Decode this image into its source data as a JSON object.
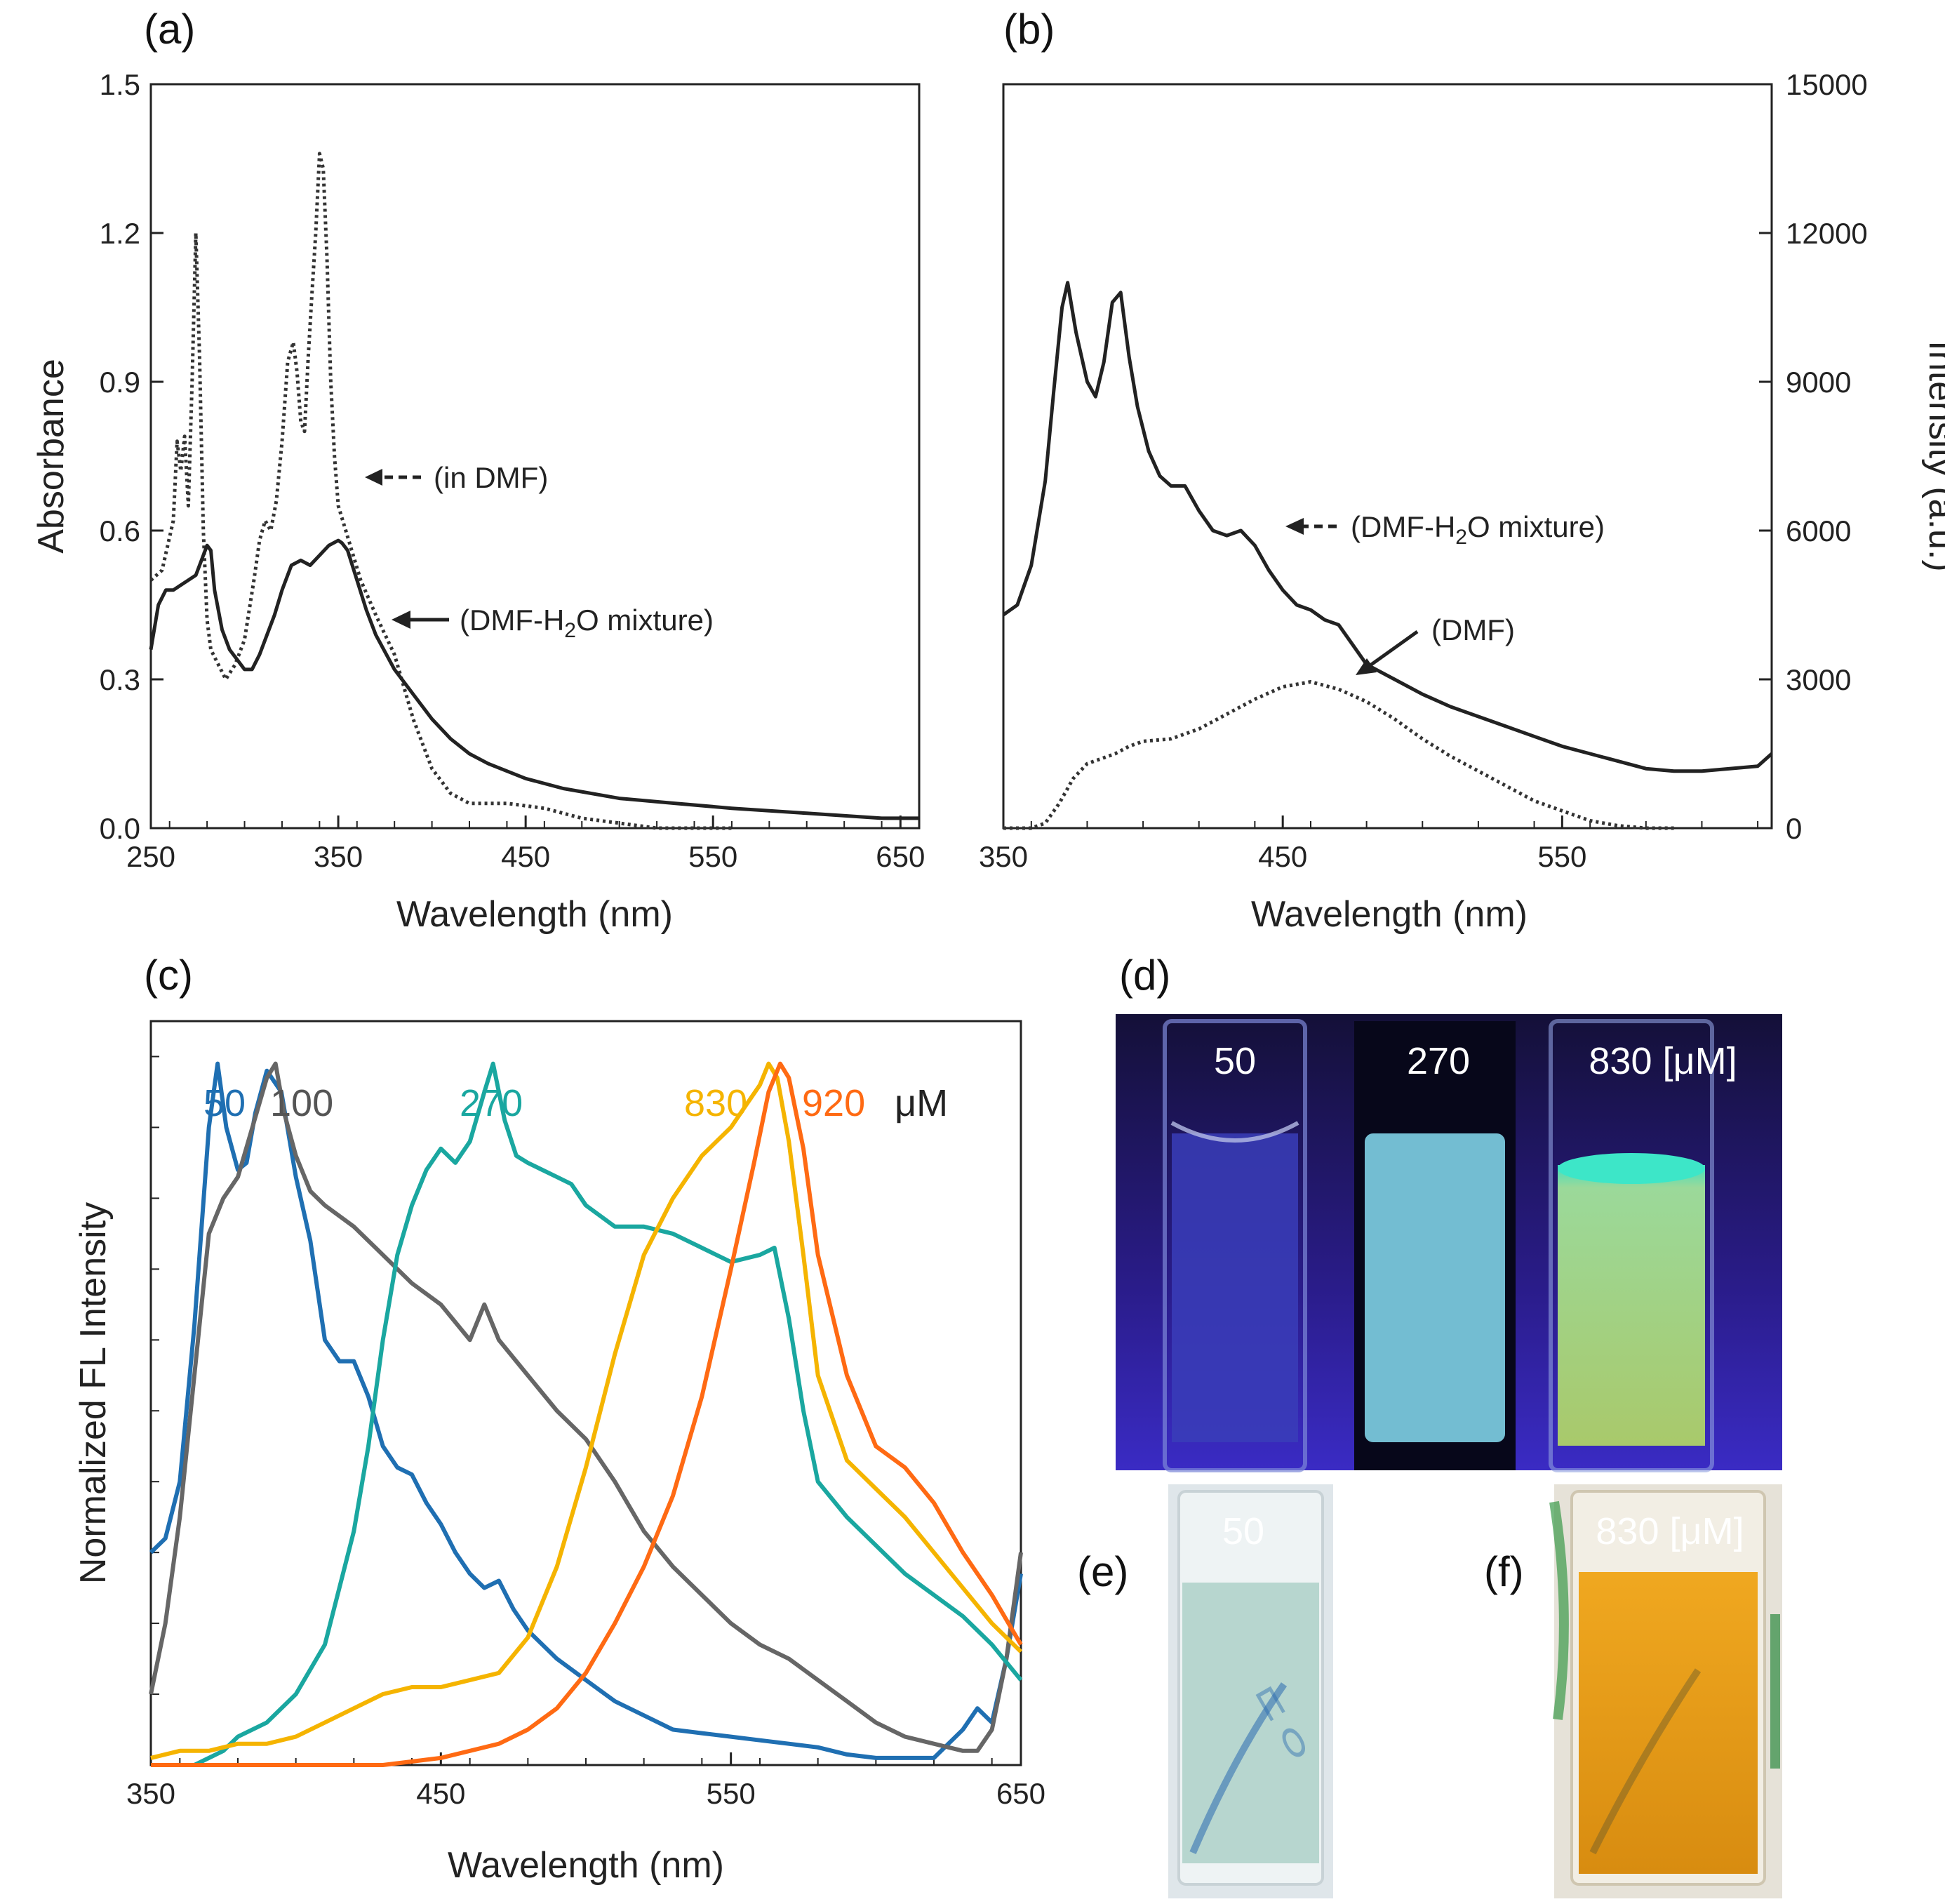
{
  "panels": {
    "a": "(a)",
    "b": "(b)",
    "c": "(c)",
    "d": "(d)",
    "e": "(e)",
    "f": "(f)"
  },
  "chart_data": [
    {
      "id": "a",
      "type": "line",
      "xlabel": "Wavelength (nm)",
      "ylabel": "Absorbance",
      "xlim": [
        250,
        660
      ],
      "ylim": [
        0,
        1.5
      ],
      "xticks": [
        "250",
        "350",
        "450",
        "550",
        "650"
      ],
      "yticks": [
        "0.0",
        "0.3",
        "0.6",
        "0.9",
        "1.2",
        "1.5"
      ],
      "series": [
        {
          "name": "(in DMF)",
          "style": "dotted",
          "color": "#333333",
          "x": [
            250,
            256,
            262,
            264,
            266,
            268,
            270,
            272,
            274,
            276,
            278,
            280,
            282,
            286,
            290,
            295,
            300,
            305,
            308,
            311,
            314,
            317,
            320,
            323,
            326,
            328,
            330,
            332,
            334,
            336,
            338,
            340,
            342,
            344,
            346,
            348,
            350,
            354,
            358,
            362,
            370,
            380,
            390,
            400,
            410,
            420,
            440,
            460,
            470,
            480,
            500,
            520,
            540,
            560
          ],
          "y": [
            0.5,
            0.52,
            0.62,
            0.78,
            0.72,
            0.79,
            0.65,
            0.9,
            1.2,
            0.95,
            0.6,
            0.42,
            0.36,
            0.33,
            0.3,
            0.33,
            0.38,
            0.5,
            0.58,
            0.62,
            0.6,
            0.66,
            0.78,
            0.94,
            0.98,
            0.92,
            0.82,
            0.8,
            0.95,
            1.08,
            1.2,
            1.36,
            1.33,
            1.15,
            0.9,
            0.75,
            0.65,
            0.6,
            0.55,
            0.5,
            0.43,
            0.35,
            0.22,
            0.12,
            0.07,
            0.05,
            0.05,
            0.04,
            0.03,
            0.02,
            0.01,
            0.0,
            0.0,
            0.0
          ]
        },
        {
          "name": "(DMF-H2O mixture)",
          "style": "solid",
          "color": "#222222",
          "x": [
            250,
            254,
            258,
            262,
            266,
            270,
            274,
            278,
            280,
            282,
            284,
            288,
            292,
            296,
            300,
            304,
            308,
            312,
            316,
            320,
            325,
            330,
            335,
            340,
            345,
            350,
            352,
            355,
            360,
            365,
            370,
            380,
            390,
            400,
            410,
            420,
            430,
            450,
            470,
            500,
            530,
            560,
            600,
            640,
            660
          ],
          "y": [
            0.36,
            0.45,
            0.48,
            0.48,
            0.49,
            0.5,
            0.51,
            0.55,
            0.57,
            0.56,
            0.48,
            0.4,
            0.36,
            0.34,
            0.32,
            0.32,
            0.35,
            0.39,
            0.43,
            0.48,
            0.53,
            0.54,
            0.53,
            0.55,
            0.57,
            0.58,
            0.575,
            0.56,
            0.5,
            0.44,
            0.39,
            0.32,
            0.27,
            0.22,
            0.18,
            0.15,
            0.13,
            0.1,
            0.08,
            0.06,
            0.05,
            0.04,
            0.03,
            0.02,
            0.02
          ]
        }
      ],
      "annotations": [
        {
          "text": "(in DMF)",
          "arrow": "dashed"
        },
        {
          "text_pre": "(DMF-H",
          "sub": "2",
          "text_post": "O mixture)",
          "arrow": "solid"
        }
      ]
    },
    {
      "id": "b",
      "type": "line",
      "xlabel": "Wavelength (nm)",
      "ylabel": "Intensity (a.u.)",
      "xlim": [
        350,
        625
      ],
      "ylim": [
        0,
        15000
      ],
      "xticks": [
        "350",
        "450",
        "550"
      ],
      "yticks": [
        "0",
        "3000",
        "6000",
        "9000",
        "12000",
        "15000"
      ],
      "series": [
        {
          "name": "DMF-H2O mixture",
          "style": "solid",
          "color": "#222222",
          "x": [
            350,
            355,
            360,
            365,
            368,
            371,
            373,
            376,
            380,
            383,
            386,
            389,
            392,
            395,
            398,
            402,
            406,
            410,
            415,
            420,
            425,
            430,
            435,
            440,
            445,
            450,
            455,
            460,
            465,
            470,
            475,
            480,
            490,
            500,
            510,
            520,
            530,
            540,
            550,
            560,
            570,
            580,
            590,
            600,
            610,
            620,
            625
          ],
          "y": [
            4300,
            4500,
            5300,
            7000,
            8800,
            10500,
            11000,
            10000,
            9000,
            8700,
            9400,
            10600,
            10800,
            9500,
            8500,
            7600,
            7100,
            6900,
            6900,
            6400,
            6000,
            5900,
            6000,
            5700,
            5200,
            4800,
            4500,
            4400,
            4200,
            4100,
            3700,
            3300,
            3000,
            2700,
            2450,
            2250,
            2050,
            1850,
            1650,
            1500,
            1350,
            1200,
            1150,
            1150,
            1200,
            1250,
            1500
          ]
        },
        {
          "name": "DMF",
          "style": "dotted",
          "color": "#333333",
          "x": [
            350,
            360,
            365,
            370,
            375,
            380,
            385,
            390,
            395,
            400,
            410,
            420,
            430,
            440,
            450,
            460,
            470,
            480,
            490,
            500,
            510,
            520,
            530,
            540,
            550,
            560,
            570,
            580,
            590
          ],
          "y": [
            0,
            0,
            100,
            500,
            1000,
            1300,
            1400,
            1500,
            1650,
            1750,
            1800,
            2000,
            2300,
            2600,
            2850,
            2950,
            2800,
            2550,
            2200,
            1800,
            1450,
            1150,
            850,
            550,
            350,
            150,
            50,
            0,
            0
          ]
        }
      ],
      "annotations": [
        {
          "text_pre": "(DMF-H",
          "sub": "2",
          "text_post": "O mixture)",
          "arrow": "dashed"
        },
        {
          "text": "(DMF)",
          "arrow": "solid"
        }
      ]
    },
    {
      "id": "c",
      "type": "line",
      "xlabel": "Wavelength (nm)",
      "ylabel": "Normalized FL Intensity",
      "xlim": [
        350,
        650
      ],
      "ylim": [
        0,
        1.05
      ],
      "xticks": [
        "350",
        "450",
        "550",
        "650"
      ],
      "unit": "μM",
      "series": [
        {
          "name": "50",
          "color": "#1f6fb2",
          "x": [
            350,
            355,
            360,
            365,
            370,
            373,
            376,
            380,
            383,
            386,
            390,
            395,
            400,
            405,
            410,
            415,
            420,
            425,
            430,
            435,
            440,
            445,
            450,
            455,
            460,
            465,
            470,
            475,
            480,
            490,
            500,
            510,
            520,
            530,
            540,
            550,
            560,
            570,
            580,
            590,
            600,
            610,
            620,
            630,
            635,
            640,
            645,
            650
          ],
          "y": [
            0.3,
            0.32,
            0.4,
            0.62,
            0.9,
            0.99,
            0.9,
            0.84,
            0.85,
            0.92,
            0.98,
            0.95,
            0.83,
            0.74,
            0.6,
            0.57,
            0.57,
            0.52,
            0.45,
            0.42,
            0.41,
            0.37,
            0.34,
            0.3,
            0.27,
            0.25,
            0.26,
            0.22,
            0.19,
            0.15,
            0.12,
            0.09,
            0.07,
            0.05,
            0.045,
            0.04,
            0.035,
            0.03,
            0.025,
            0.015,
            0.01,
            0.01,
            0.01,
            0.05,
            0.08,
            0.06,
            0.15,
            0.27
          ]
        },
        {
          "name": "100",
          "color": "#666666",
          "x": [
            350,
            355,
            360,
            365,
            370,
            375,
            380,
            385,
            390,
            393,
            396,
            400,
            405,
            410,
            420,
            430,
            440,
            450,
            460,
            465,
            470,
            480,
            490,
            500,
            510,
            520,
            530,
            540,
            550,
            560,
            570,
            580,
            590,
            600,
            610,
            620,
            630,
            635,
            640,
            645,
            650
          ],
          "y": [
            0.1,
            0.2,
            0.35,
            0.55,
            0.75,
            0.8,
            0.83,
            0.9,
            0.97,
            0.99,
            0.92,
            0.86,
            0.81,
            0.79,
            0.76,
            0.72,
            0.68,
            0.65,
            0.6,
            0.65,
            0.6,
            0.55,
            0.5,
            0.46,
            0.4,
            0.33,
            0.28,
            0.24,
            0.2,
            0.17,
            0.15,
            0.12,
            0.09,
            0.06,
            0.04,
            0.03,
            0.02,
            0.02,
            0.05,
            0.15,
            0.3
          ]
        },
        {
          "name": "270",
          "color": "#1aa7a0",
          "x": [
            350,
            365,
            375,
            380,
            390,
            400,
            410,
            420,
            425,
            430,
            435,
            440,
            445,
            450,
            455,
            460,
            465,
            468,
            472,
            476,
            480,
            485,
            490,
            495,
            500,
            510,
            520,
            530,
            540,
            550,
            560,
            565,
            570,
            575,
            580,
            590,
            600,
            610,
            620,
            630,
            640,
            650
          ],
          "y": [
            0.0,
            0.0,
            0.02,
            0.04,
            0.06,
            0.1,
            0.17,
            0.33,
            0.45,
            0.6,
            0.72,
            0.79,
            0.84,
            0.87,
            0.85,
            0.88,
            0.95,
            0.99,
            0.91,
            0.86,
            0.85,
            0.84,
            0.83,
            0.82,
            0.79,
            0.76,
            0.76,
            0.75,
            0.73,
            0.71,
            0.72,
            0.73,
            0.63,
            0.5,
            0.4,
            0.35,
            0.31,
            0.27,
            0.24,
            0.21,
            0.17,
            0.12
          ]
        },
        {
          "name": "830",
          "color": "#f5b400",
          "x": [
            350,
            360,
            370,
            380,
            390,
            400,
            410,
            420,
            430,
            440,
            450,
            460,
            470,
            480,
            490,
            500,
            510,
            520,
            530,
            540,
            550,
            555,
            560,
            563,
            566,
            570,
            575,
            580,
            590,
            600,
            610,
            620,
            630,
            640,
            650
          ],
          "y": [
            0.01,
            0.02,
            0.02,
            0.03,
            0.03,
            0.04,
            0.06,
            0.08,
            0.1,
            0.11,
            0.11,
            0.12,
            0.13,
            0.18,
            0.28,
            0.42,
            0.58,
            0.72,
            0.8,
            0.86,
            0.9,
            0.93,
            0.96,
            0.99,
            0.97,
            0.88,
            0.72,
            0.55,
            0.43,
            0.39,
            0.35,
            0.3,
            0.25,
            0.2,
            0.16
          ]
        },
        {
          "name": "920",
          "color": "#ff6a13",
          "x": [
            350,
            400,
            430,
            450,
            460,
            470,
            480,
            490,
            500,
            510,
            520,
            530,
            540,
            550,
            558,
            563,
            567,
            570,
            575,
            580,
            590,
            600,
            610,
            620,
            630,
            640,
            650
          ],
          "y": [
            0.0,
            0.0,
            0.0,
            0.01,
            0.02,
            0.03,
            0.05,
            0.08,
            0.13,
            0.2,
            0.28,
            0.38,
            0.52,
            0.7,
            0.85,
            0.95,
            0.99,
            0.97,
            0.87,
            0.72,
            0.55,
            0.45,
            0.42,
            0.37,
            0.3,
            0.24,
            0.17
          ]
        }
      ]
    }
  ],
  "photos": {
    "d": {
      "labels": [
        "50",
        "270",
        "830 [μM]"
      ]
    },
    "e": {
      "label": "50"
    },
    "f": {
      "label": "830 [μM]"
    }
  }
}
